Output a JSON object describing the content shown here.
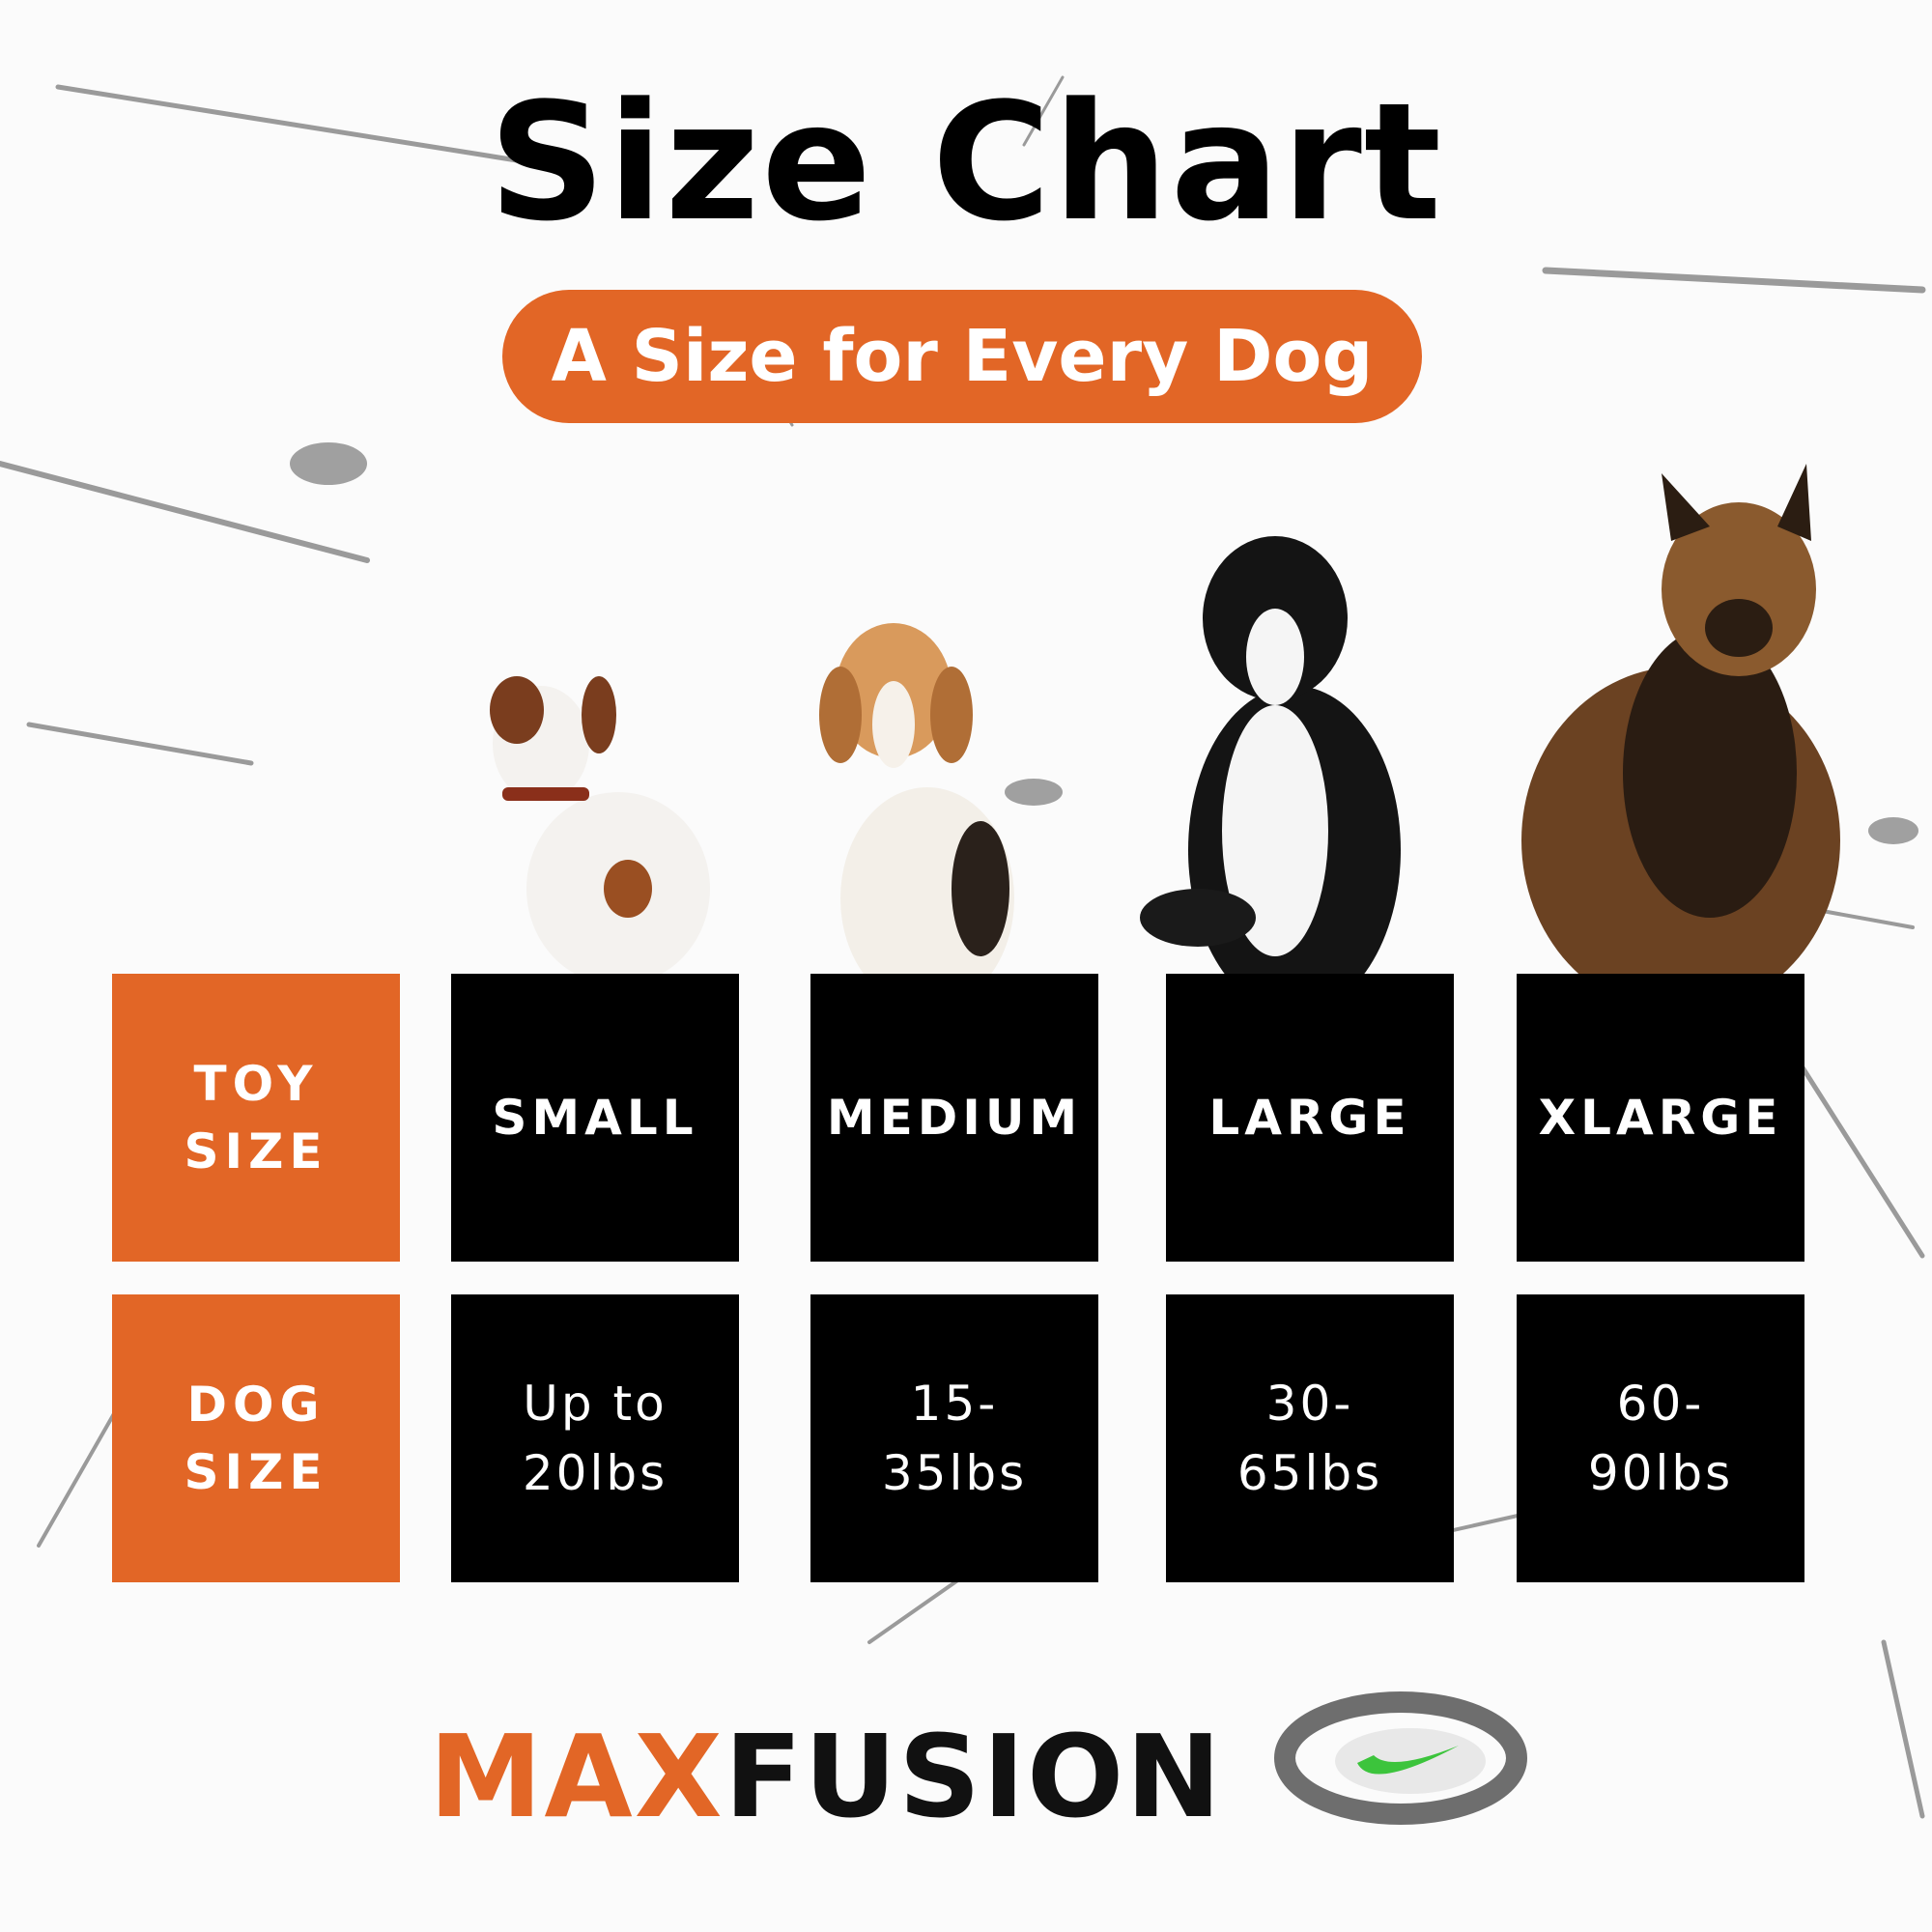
{
  "title": "Size Chart",
  "subtitle": "A Size for Every Dog",
  "table": {
    "row_labels": [
      "TOY SIZE",
      "DOG SIZE"
    ],
    "sizes": [
      "SMALL",
      "MEDIUM",
      "LARGE",
      "XLARGE"
    ],
    "weights": [
      "Up to 20lbs",
      "15-35lbs",
      "30-65lbs",
      "60-90lbs"
    ]
  },
  "brand": {
    "max": "MAX",
    "fusion": "FUSION"
  }
}
